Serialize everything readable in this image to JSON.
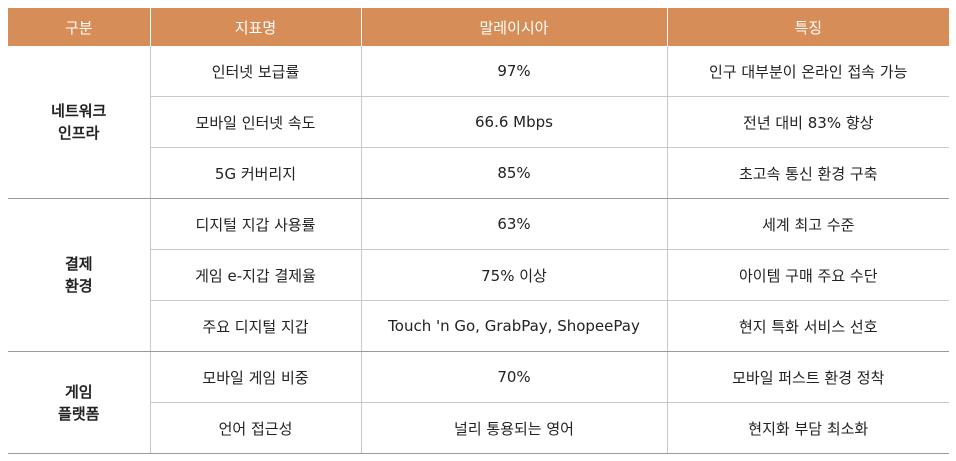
{
  "table": {
    "headers": [
      "구분",
      "지표명",
      "말레이시아",
      "특징"
    ],
    "groups": [
      {
        "category_lines": [
          "네트워크",
          "인프라"
        ],
        "rows": [
          {
            "indicator": "인터넷 보급률",
            "value": "97%",
            "feature": "인구 대부분이 온라인 접속 가능"
          },
          {
            "indicator": "모바일 인터넷 속도",
            "value": "66.6 Mbps",
            "feature": "전년 대비 83% 향상"
          },
          {
            "indicator": "5G 커버리지",
            "value": "85%",
            "feature": "초고속 통신 환경 구축"
          }
        ]
      },
      {
        "category_lines": [
          "결제",
          "환경"
        ],
        "rows": [
          {
            "indicator": "디지털 지갑 사용률",
            "value": "63%",
            "feature": "세계 최고 수준"
          },
          {
            "indicator": "게임 e-지갑 결제율",
            "value": "75% 이상",
            "feature": "아이템 구매 주요 수단"
          },
          {
            "indicator": "주요 디지털 지갑",
            "value": "Touch 'n Go, GrabPay, ShopeePay",
            "feature": "현지 특화 서비스 선호"
          }
        ]
      },
      {
        "category_lines": [
          "게임",
          "플랫폼"
        ],
        "rows": [
          {
            "indicator": "모바일 게임 비중",
            "value": "70%",
            "feature": "모바일 퍼스트 환경 정착"
          },
          {
            "indicator": "언어 접근성",
            "value": "널리 통용되는 영어",
            "feature": "현지화 부담 최소화"
          }
        ]
      }
    ]
  },
  "colors": {
    "header_bg": "#d78d57",
    "header_text": "#ffffff",
    "rule": "#c8c8c8"
  }
}
